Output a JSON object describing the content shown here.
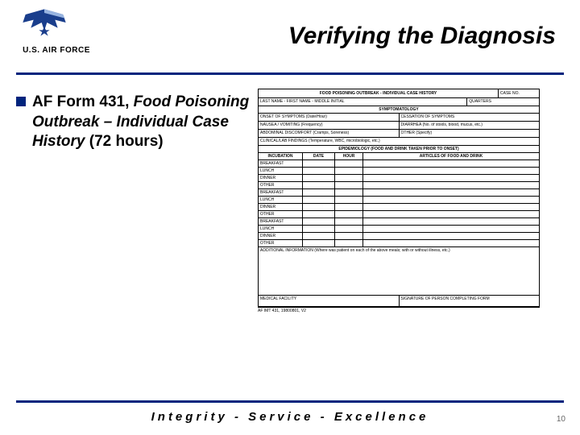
{
  "header": {
    "branch_label": "U.S. AIR FORCE",
    "title": "Verifying the Diagnosis",
    "logo_colors": {
      "wing": "#1a3e8c",
      "star": "#ffffff",
      "accent": "#c8102e"
    }
  },
  "bullet": {
    "prefix": "AF Form 431, ",
    "italic": "Food Poisoning Outbreak – Individual Case History",
    "suffix": " (72 hours)"
  },
  "form": {
    "title": "FOOD POISONING OUTBREAK - INDIVIDUAL CASE HISTORY",
    "case_label": "CASE NO.",
    "name_label": "LAST NAME - FIRST NAME - MIDDLE INITIAL",
    "quarters_label": "QUARTERS",
    "section1": "SYMPTOMATOLOGY",
    "onset_label": "ONSET OF SYMPTOMS (Date/Hour)",
    "cessation_label": "CESSATION OF SYMPTOMS",
    "nausea_label": "NAUSEA / VOMITING (Frequency)",
    "diarrhea_label": "DIARRHEA (No. of stools, blood, mucus, etc.)",
    "abdominal_label": "ABDOMINAL DISCOMFORT (Cramps, Soreness)",
    "other_label": "OTHER (Specify)",
    "clinical_label": "CLINICAL/LAB FINDINGS (Temperature, WBC, microbiologic, etc.)",
    "section2": "EPIDEMIOLOGY (FOOD AND DRINK TAKEN PRIOR TO ONSET)",
    "col_incubation": "INCUBATION",
    "col_date": "DATE",
    "col_hour": "HOUR",
    "col_articles": "ARTICLES OF FOOD AND DRINK",
    "meal_rows": [
      "BREAKFAST",
      "LUNCH",
      "DINNER",
      "OTHER",
      "BREAKFAST",
      "LUNCH",
      "DINNER",
      "OTHER",
      "BREAKFAST",
      "LUNCH",
      "DINNER",
      "OTHER"
    ],
    "additional_label": "ADDITIONAL INFORMATION (Where was patient on each of the above meals; with or without illness, etc.)",
    "facility_label": "MEDICAL FACILITY",
    "signature_label": "SIGNATURE OF PERSON COMPLETING FORM",
    "footer_left": "AF IMT 431, 19800801, V2"
  },
  "footer": {
    "motto": "Integrity - Service - Excellence",
    "page": "10"
  },
  "colors": {
    "rule": "#00247d",
    "bullet": "#00247d"
  }
}
